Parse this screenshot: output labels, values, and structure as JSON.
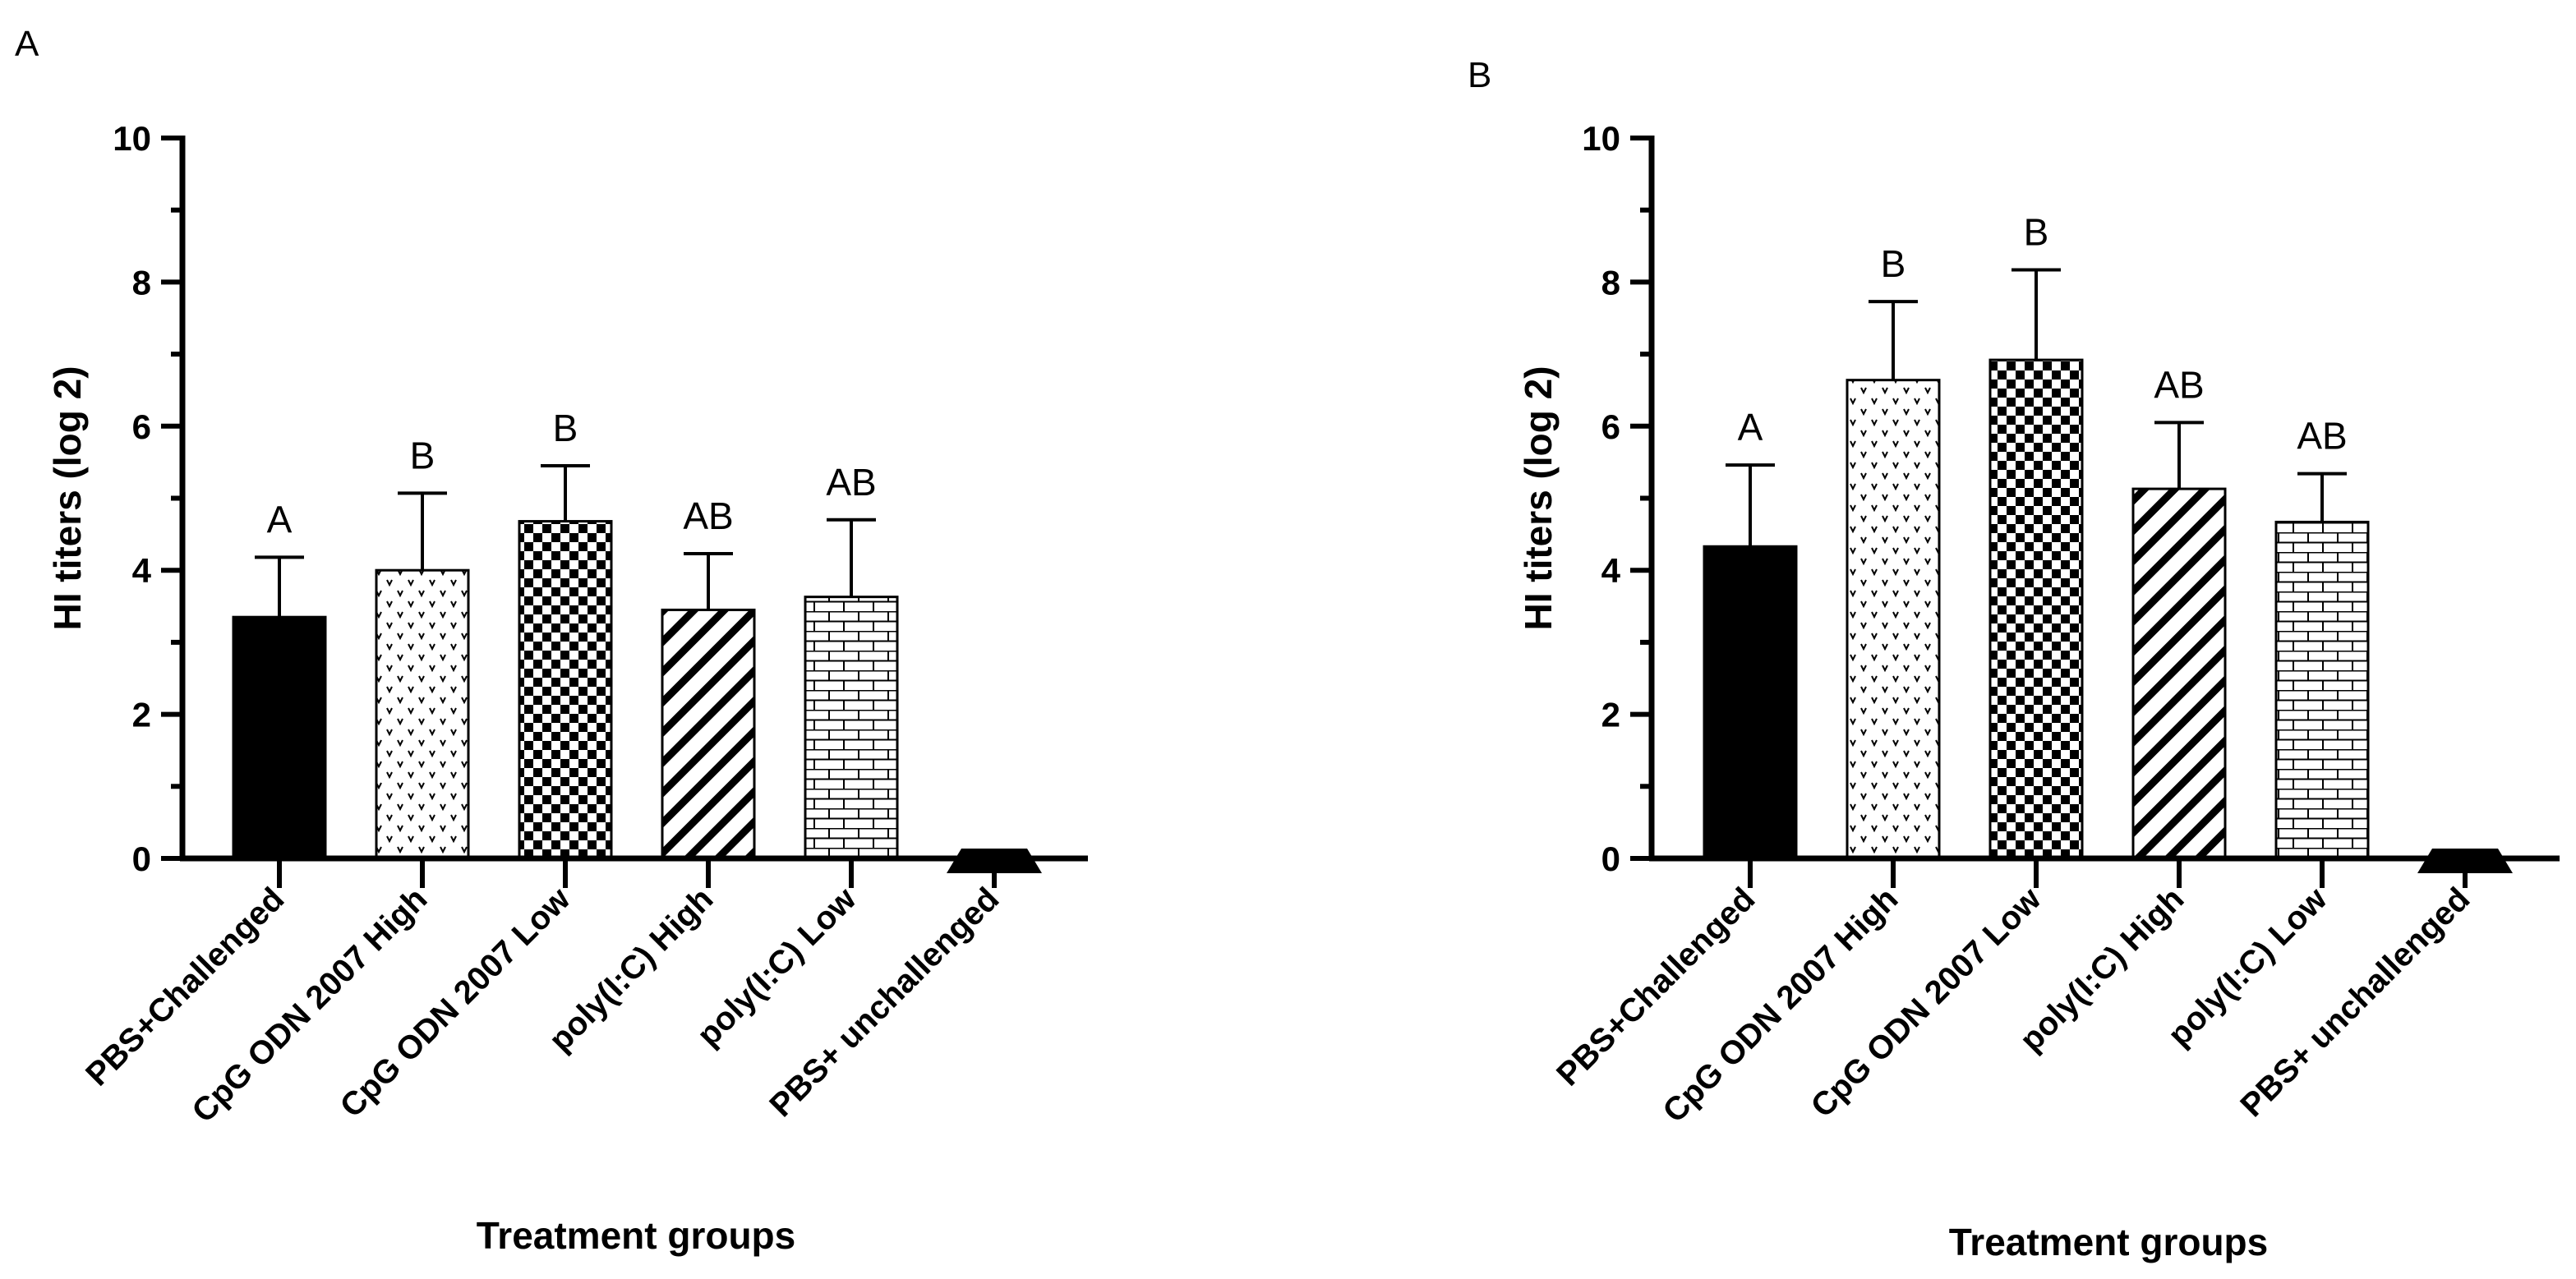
{
  "chart_data": [
    {
      "type": "bar",
      "panel_label": "A",
      "title": "",
      "xlabel": "Treatment groups",
      "ylabel": "HI titers (log 2)",
      "ylim": [
        0,
        10
      ],
      "yticks": [
        0,
        2,
        4,
        6,
        8,
        10
      ],
      "y_ticks_text": [
        "0",
        "2",
        "4",
        "6",
        "8",
        "10"
      ],
      "categories": [
        "PBS+Challenged",
        "CpG ODN 2007 High",
        "CpG ODN 2007 Low",
        "poly(I:C) High",
        "poly(I:C) Low",
        "PBS+ unchallenged"
      ],
      "values": [
        3.35,
        4.0,
        4.68,
        3.45,
        3.63,
        0.0
      ],
      "error_upper": [
        0.83,
        1.07,
        0.77,
        0.78,
        1.07,
        0.0
      ],
      "significance": [
        "A",
        "B",
        "B",
        "AB",
        "AB",
        ""
      ],
      "patterns": [
        "solid",
        "dots",
        "checker",
        "diagonal",
        "brick",
        "solid"
      ]
    },
    {
      "type": "bar",
      "panel_label": "B",
      "title": "",
      "xlabel": "Treatment groups",
      "ylabel": "HI titers (log 2)",
      "ylim": [
        0,
        10
      ],
      "yticks": [
        0,
        2,
        4,
        6,
        8,
        10
      ],
      "y_ticks_text": [
        "0",
        "2",
        "4",
        "6",
        "8",
        "10"
      ],
      "categories": [
        "PBS+Challenged",
        "CpG ODN 2007 High",
        "CpG ODN 2007 Low",
        "poly(I:C) High",
        "poly(I:C) Low",
        "PBS+ unchallenged"
      ],
      "values": [
        4.33,
        6.64,
        6.92,
        5.13,
        4.67,
        0.0
      ],
      "error_upper": [
        1.13,
        1.09,
        1.25,
        0.92,
        0.67,
        0.0
      ],
      "significance": [
        "A",
        "B",
        "B",
        "AB",
        "AB",
        ""
      ],
      "patterns": [
        "solid",
        "dots",
        "checker",
        "diagonal",
        "brick",
        "solid"
      ]
    }
  ],
  "colors": {
    "ink": "#000000",
    "background": "#ffffff"
  }
}
